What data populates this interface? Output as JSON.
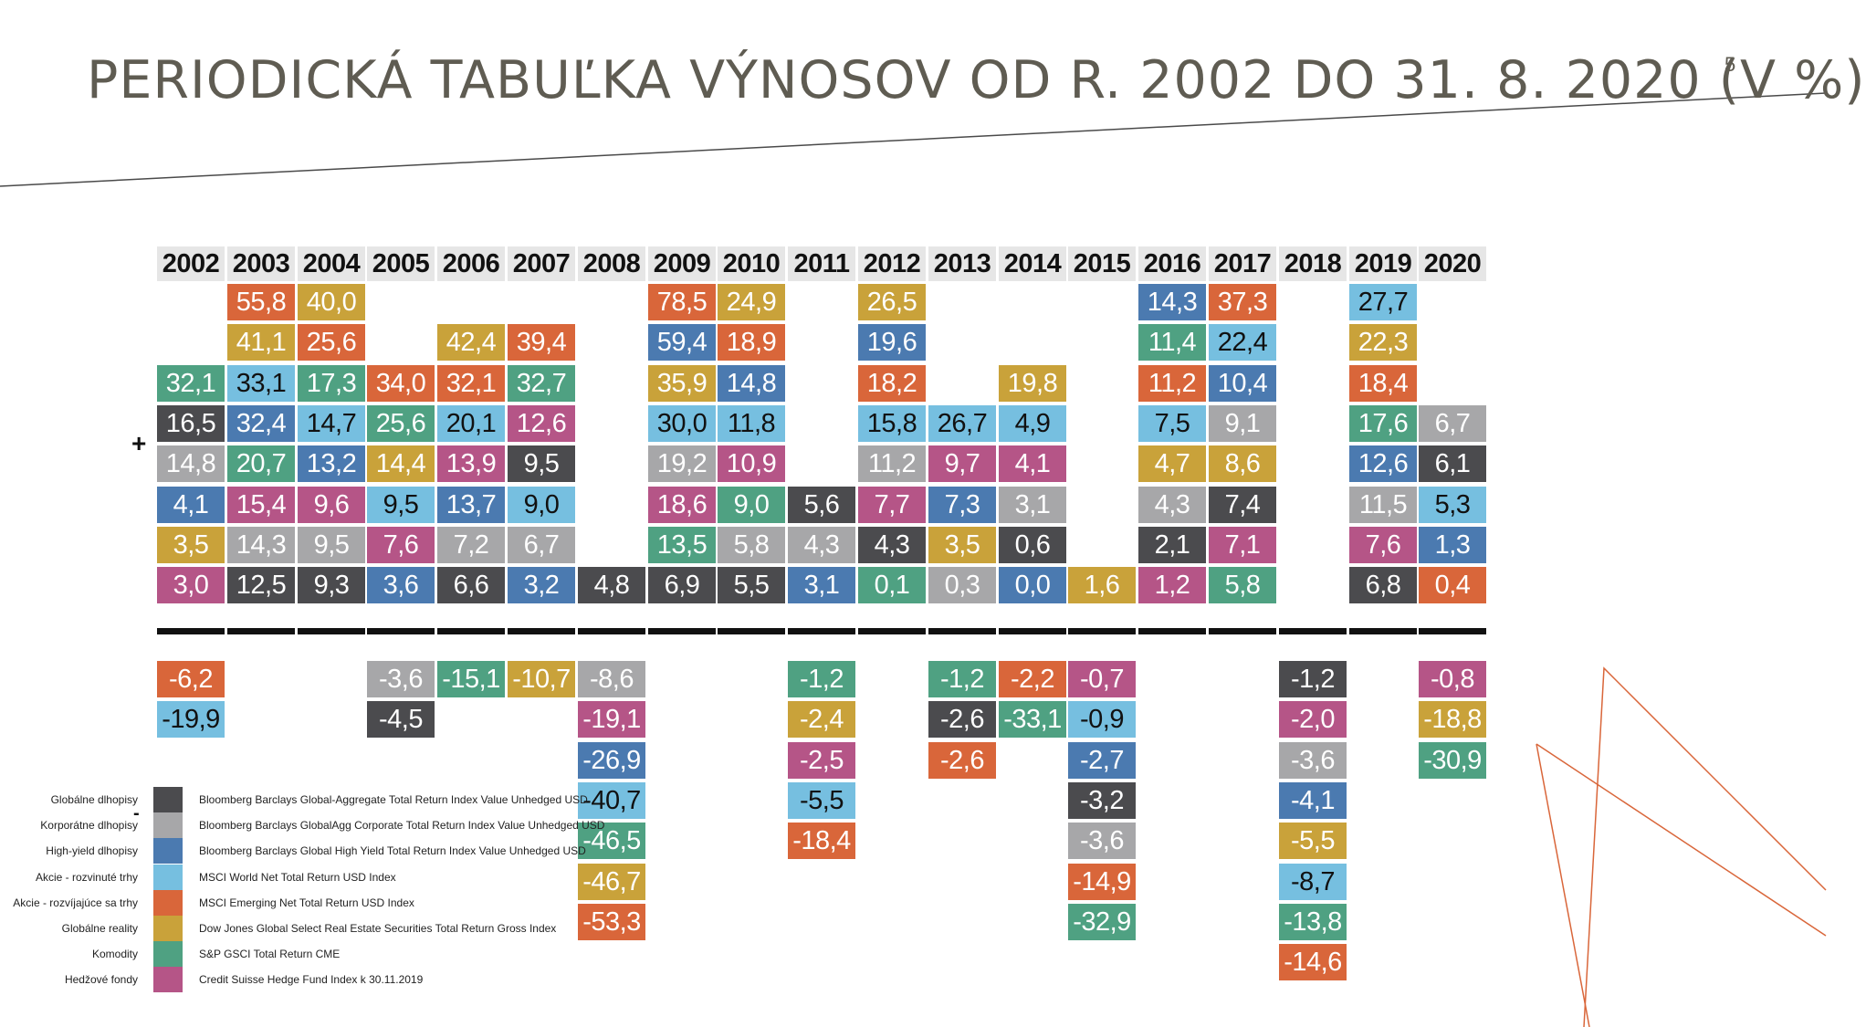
{
  "title": "PERIODICKÁ TABUĽKA VÝNOSOV OD R. 2002 DO 31. 8. 2020 (V %)",
  "page_number": "5",
  "plus_sign": "+",
  "minus_sign": "-",
  "colors": {
    "globalne_dlhopisy": "#4b4b4e",
    "korporatne_dlhopisy": "#a7a7a9",
    "high_yield_dlhopisy": "#4b7ab0",
    "akcie_rozvinute": "#76bfe0",
    "akcie_rozvijajuce": "#d9663a",
    "globalne_reality": "#c9a23a",
    "komodity": "#4fa182",
    "hedzove_fondy": "#b55587",
    "accent_line": "#d9663a",
    "title": "#5f5c52"
  },
  "legend": [
    {
      "key": "globalne_dlhopisy",
      "name": "Globálne dlhopisy",
      "index": "Bloomberg Barclays Global-Aggregate Total Return Index Value Unhedged USD"
    },
    {
      "key": "korporatne_dlhopisy",
      "name": "Korporátne dlhopisy",
      "index": "Bloomberg Barclays GlobalAgg Corporate Total Return Index Value Unhedged USD"
    },
    {
      "key": "high_yield_dlhopisy",
      "name": "High-yield dlhopisy",
      "index": "Bloomberg Barclays Global High Yield Total Return Index Value Unhedged USD"
    },
    {
      "key": "akcie_rozvinute",
      "name": "Akcie - rozvinuté trhy",
      "index": "MSCI World Net Total Return USD Index"
    },
    {
      "key": "akcie_rozvijajuce",
      "name": "Akcie - rozvíjajúce sa trhy",
      "index": "MSCI Emerging Net Total Return USD Index"
    },
    {
      "key": "globalne_reality",
      "name": "Globálne reality",
      "index": "Dow Jones Global Select Real Estate Securities Total Return Gross Index"
    },
    {
      "key": "komodity",
      "name": "Komodity",
      "index": "S&P GSCI Total Return CME"
    },
    {
      "key": "hedzove_fondy",
      "name": "Hedžové fondy",
      "index": "Credit Suisse Hedge Fund Index k 30.11.2019"
    }
  ],
  "chart_data": {
    "type": "table",
    "title": "PERIODICKÁ TABUĽKA VÝNOSOV OD R. 2002 DO 31. 8. 2020 (V %)",
    "years": [
      {
        "year": "2002",
        "positive": [
          [
            "32,1",
            "komodity"
          ],
          [
            "16,5",
            "globalne_dlhopisy"
          ],
          [
            "14,8",
            "korporatne_dlhopisy"
          ],
          [
            "4,1",
            "high_yield_dlhopisy"
          ],
          [
            "3,5",
            "globalne_reality"
          ],
          [
            "3,0",
            "hedzove_fondy"
          ]
        ],
        "negative": [
          [
            "-6,2",
            "akcie_rozvijajuce"
          ],
          [
            "-19,9",
            "akcie_rozvinute"
          ]
        ]
      },
      {
        "year": "2003",
        "positive": [
          [
            "55,8",
            "akcie_rozvijajuce"
          ],
          [
            "41,1",
            "globalne_reality"
          ],
          [
            "33,1",
            "akcie_rozvinute"
          ],
          [
            "32,4",
            "high_yield_dlhopisy"
          ],
          [
            "20,7",
            "komodity"
          ],
          [
            "15,4",
            "hedzove_fondy"
          ],
          [
            "14,3",
            "korporatne_dlhopisy"
          ],
          [
            "12,5",
            "globalne_dlhopisy"
          ]
        ],
        "negative": []
      },
      {
        "year": "2004",
        "positive": [
          [
            "40,0",
            "globalne_reality"
          ],
          [
            "25,6",
            "akcie_rozvijajuce"
          ],
          [
            "17,3",
            "komodity"
          ],
          [
            "14,7",
            "akcie_rozvinute"
          ],
          [
            "13,2",
            "high_yield_dlhopisy"
          ],
          [
            "9,6",
            "hedzove_fondy"
          ],
          [
            "9,5",
            "korporatne_dlhopisy"
          ],
          [
            "9,3",
            "globalne_dlhopisy"
          ]
        ],
        "negative": []
      },
      {
        "year": "2005",
        "positive": [
          [
            "34,0",
            "akcie_rozvijajuce"
          ],
          [
            "25,6",
            "komodity"
          ],
          [
            "14,4",
            "globalne_reality"
          ],
          [
            "9,5",
            "akcie_rozvinute"
          ],
          [
            "7,6",
            "hedzove_fondy"
          ],
          [
            "3,6",
            "high_yield_dlhopisy"
          ]
        ],
        "negative": [
          [
            "-3,6",
            "korporatne_dlhopisy"
          ],
          [
            "-4,5",
            "globalne_dlhopisy"
          ]
        ]
      },
      {
        "year": "2006",
        "positive": [
          [
            "42,4",
            "globalne_reality"
          ],
          [
            "32,1",
            "akcie_rozvijajuce"
          ],
          [
            "20,1",
            "akcie_rozvinute"
          ],
          [
            "13,9",
            "hedzove_fondy"
          ],
          [
            "13,7",
            "high_yield_dlhopisy"
          ],
          [
            "7,2",
            "korporatne_dlhopisy"
          ],
          [
            "6,6",
            "globalne_dlhopisy"
          ]
        ],
        "negative": [
          [
            "-15,1",
            "komodity"
          ]
        ]
      },
      {
        "year": "2007",
        "positive": [
          [
            "39,4",
            "akcie_rozvijajuce"
          ],
          [
            "32,7",
            "komodity"
          ],
          [
            "12,6",
            "hedzove_fondy"
          ],
          [
            "9,5",
            "globalne_dlhopisy"
          ],
          [
            "9,0",
            "akcie_rozvinute"
          ],
          [
            "6,7",
            "korporatne_dlhopisy"
          ],
          [
            "3,2",
            "high_yield_dlhopisy"
          ]
        ],
        "negative": [
          [
            "-10,7",
            "globalne_reality"
          ]
        ]
      },
      {
        "year": "2008",
        "positive": [
          [
            "4,8",
            "globalne_dlhopisy"
          ]
        ],
        "negative": [
          [
            "-8,6",
            "korporatne_dlhopisy"
          ],
          [
            "-19,1",
            "hedzove_fondy"
          ],
          [
            "-26,9",
            "high_yield_dlhopisy"
          ],
          [
            "-40,7",
            "akcie_rozvinute"
          ],
          [
            "-46,5",
            "komodity"
          ],
          [
            "-46,7",
            "globalne_reality"
          ],
          [
            "-53,3",
            "akcie_rozvijajuce"
          ]
        ]
      },
      {
        "year": "2009",
        "positive": [
          [
            "78,5",
            "akcie_rozvijajuce"
          ],
          [
            "59,4",
            "high_yield_dlhopisy"
          ],
          [
            "35,9",
            "globalne_reality"
          ],
          [
            "30,0",
            "akcie_rozvinute"
          ],
          [
            "19,2",
            "korporatne_dlhopisy"
          ],
          [
            "18,6",
            "hedzove_fondy"
          ],
          [
            "13,5",
            "komodity"
          ],
          [
            "6,9",
            "globalne_dlhopisy"
          ]
        ],
        "negative": []
      },
      {
        "year": "2010",
        "positive": [
          [
            "24,9",
            "globalne_reality"
          ],
          [
            "18,9",
            "akcie_rozvijajuce"
          ],
          [
            "14,8",
            "high_yield_dlhopisy"
          ],
          [
            "11,8",
            "akcie_rozvinute"
          ],
          [
            "10,9",
            "hedzove_fondy"
          ],
          [
            "9,0",
            "komodity"
          ],
          [
            "5,8",
            "korporatne_dlhopisy"
          ],
          [
            "5,5",
            "globalne_dlhopisy"
          ]
        ],
        "negative": []
      },
      {
        "year": "2011",
        "positive": [
          [
            "5,6",
            "globalne_dlhopisy"
          ],
          [
            "4,3",
            "korporatne_dlhopisy"
          ],
          [
            "3,1",
            "high_yield_dlhopisy"
          ]
        ],
        "negative": [
          [
            "-1,2",
            "komodity"
          ],
          [
            "-2,4",
            "globalne_reality"
          ],
          [
            "-2,5",
            "hedzove_fondy"
          ],
          [
            "-5,5",
            "akcie_rozvinute"
          ],
          [
            "-18,4",
            "akcie_rozvijajuce"
          ]
        ]
      },
      {
        "year": "2012",
        "positive": [
          [
            "26,5",
            "globalne_reality"
          ],
          [
            "19,6",
            "high_yield_dlhopisy"
          ],
          [
            "18,2",
            "akcie_rozvijajuce"
          ],
          [
            "15,8",
            "akcie_rozvinute"
          ],
          [
            "11,2",
            "korporatne_dlhopisy"
          ],
          [
            "7,7",
            "hedzove_fondy"
          ],
          [
            "4,3",
            "globalne_dlhopisy"
          ],
          [
            "0,1",
            "komodity"
          ]
        ],
        "negative": []
      },
      {
        "year": "2013",
        "positive": [
          [
            "26,7",
            "akcie_rozvinute"
          ],
          [
            "9,7",
            "hedzove_fondy"
          ],
          [
            "7,3",
            "high_yield_dlhopisy"
          ],
          [
            "3,5",
            "globalne_reality"
          ],
          [
            "0,3",
            "korporatne_dlhopisy"
          ]
        ],
        "negative": [
          [
            "-1,2",
            "komodity"
          ],
          [
            "-2,6",
            "globalne_dlhopisy"
          ],
          [
            "-2,6",
            "akcie_rozvijajuce"
          ]
        ]
      },
      {
        "year": "2014",
        "positive": [
          [
            "19,8",
            "globalne_reality"
          ],
          [
            "4,9",
            "akcie_rozvinute"
          ],
          [
            "4,1",
            "hedzove_fondy"
          ],
          [
            "3,1",
            "korporatne_dlhopisy"
          ],
          [
            "0,6",
            "globalne_dlhopisy"
          ],
          [
            "0,0",
            "high_yield_dlhopisy"
          ]
        ],
        "negative": [
          [
            "-2,2",
            "akcie_rozvijajuce"
          ],
          [
            "-33,1",
            "komodity"
          ]
        ]
      },
      {
        "year": "2015",
        "positive": [
          [
            "1,6",
            "globalne_reality"
          ]
        ],
        "negative": [
          [
            "-0,7",
            "hedzove_fondy"
          ],
          [
            "-0,9",
            "akcie_rozvinute"
          ],
          [
            "-2,7",
            "high_yield_dlhopisy"
          ],
          [
            "-3,2",
            "globalne_dlhopisy"
          ],
          [
            "-3,6",
            "korporatne_dlhopisy"
          ],
          [
            "-14,9",
            "akcie_rozvijajuce"
          ],
          [
            "-32,9",
            "komodity"
          ]
        ]
      },
      {
        "year": "2016",
        "positive": [
          [
            "14,3",
            "high_yield_dlhopisy"
          ],
          [
            "11,4",
            "komodity"
          ],
          [
            "11,2",
            "akcie_rozvijajuce"
          ],
          [
            "7,5",
            "akcie_rozvinute"
          ],
          [
            "4,7",
            "globalne_reality"
          ],
          [
            "4,3",
            "korporatne_dlhopisy"
          ],
          [
            "2,1",
            "globalne_dlhopisy"
          ],
          [
            "1,2",
            "hedzove_fondy"
          ]
        ],
        "negative": []
      },
      {
        "year": "2017",
        "positive": [
          [
            "37,3",
            "akcie_rozvijajuce"
          ],
          [
            "22,4",
            "akcie_rozvinute"
          ],
          [
            "10,4",
            "high_yield_dlhopisy"
          ],
          [
            "9,1",
            "korporatne_dlhopisy"
          ],
          [
            "8,6",
            "globalne_reality"
          ],
          [
            "7,4",
            "globalne_dlhopisy"
          ],
          [
            "7,1",
            "hedzove_fondy"
          ],
          [
            "5,8",
            "komodity"
          ]
        ],
        "negative": []
      },
      {
        "year": "2018",
        "positive": [],
        "negative": [
          [
            "-1,2",
            "globalne_dlhopisy"
          ],
          [
            "-2,0",
            "hedzove_fondy"
          ],
          [
            "-3,6",
            "korporatne_dlhopisy"
          ],
          [
            "-4,1",
            "high_yield_dlhopisy"
          ],
          [
            "-5,5",
            "globalne_reality"
          ],
          [
            "-8,7",
            "akcie_rozvinute"
          ],
          [
            "-13,8",
            "komodity"
          ],
          [
            "-14,6",
            "akcie_rozvijajuce"
          ]
        ]
      },
      {
        "year": "2019",
        "positive": [
          [
            "27,7",
            "akcie_rozvinute"
          ],
          [
            "22,3",
            "globalne_reality"
          ],
          [
            "18,4",
            "akcie_rozvijajuce"
          ],
          [
            "17,6",
            "komodity"
          ],
          [
            "12,6",
            "high_yield_dlhopisy"
          ],
          [
            "11,5",
            "korporatne_dlhopisy"
          ],
          [
            "7,6",
            "hedzove_fondy"
          ],
          [
            "6,8",
            "globalne_dlhopisy"
          ]
        ],
        "negative": []
      },
      {
        "year": "2020",
        "positive": [
          [
            "6,7",
            "korporatne_dlhopisy"
          ],
          [
            "6,1",
            "globalne_dlhopisy"
          ],
          [
            "5,3",
            "akcie_rozvinute"
          ],
          [
            "1,3",
            "high_yield_dlhopisy"
          ],
          [
            "0,4",
            "akcie_rozvijajuce"
          ]
        ],
        "negative": [
          [
            "-0,8",
            "hedzove_fondy"
          ],
          [
            "-18,8",
            "globalne_reality"
          ],
          [
            "-30,9",
            "komodity"
          ]
        ]
      }
    ]
  }
}
